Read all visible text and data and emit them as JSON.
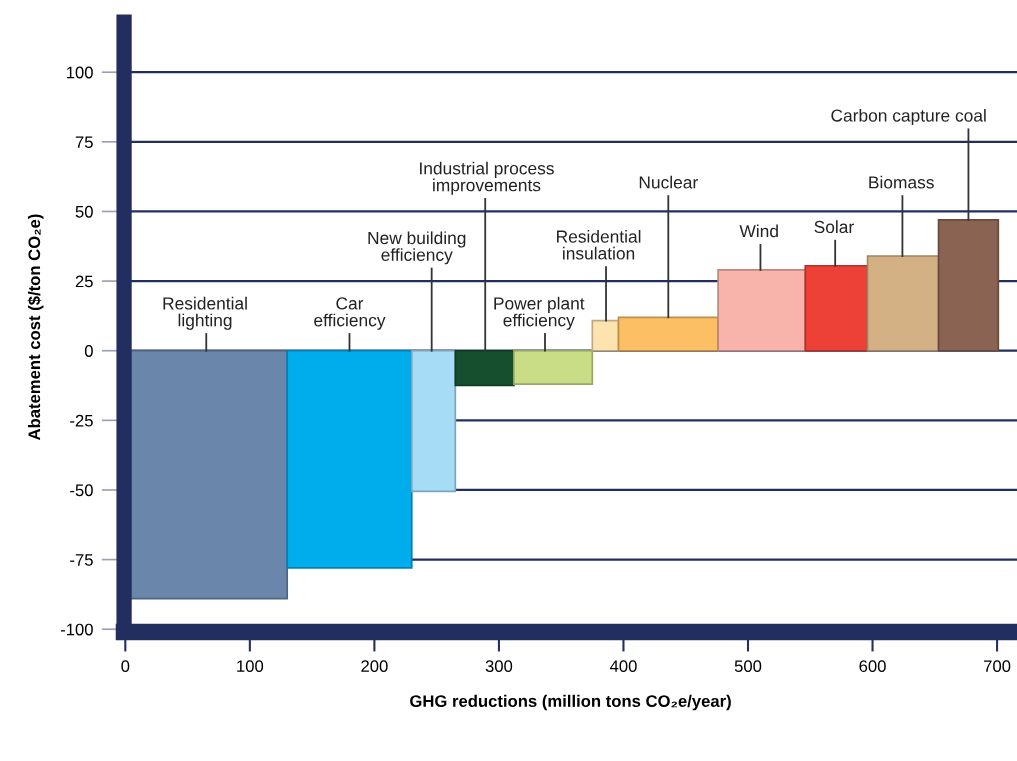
{
  "chart_data": {
    "type": "histogram",
    "bins": [
      0,
      130,
      230,
      265,
      312,
      375,
      396,
      476,
      546,
      596,
      653,
      701
    ],
    "values": [
      -89,
      -78,
      -50.5,
      -12.5,
      -12,
      10.8,
      12,
      29,
      30.5,
      34,
      47
    ],
    "colors": [
      "#6a86ab",
      "#00adec",
      "#a6dcf5",
      "#154f2e",
      "#c8dd85",
      "#fde3ad",
      "#fdbf63",
      "#f8b4aa",
      "#ed4036",
      "#d4b185",
      "#8a6353"
    ],
    "annotations": [
      {
        "text": "Residential\nlighting",
        "x": 65,
        "y": 0
      },
      {
        "text": "Car\nefficiency",
        "x": 180,
        "y": 0
      },
      {
        "text": "New building\nefficiency",
        "x": 246,
        "y": 0
      },
      {
        "text": "Industrial process\nimprovements",
        "x": 289,
        "y": 0
      },
      {
        "text": "Power plant\nefficiency",
        "x": 337,
        "y": 0
      },
      {
        "text": "Residential\ninsulation",
        "x": 386,
        "y": 10.8
      },
      {
        "text": "Nuclear",
        "x": 436,
        "y": 12
      },
      {
        "text": "Wind",
        "x": 510,
        "y": 29
      },
      {
        "text": "Solar",
        "x": 570,
        "y": 30.5
      },
      {
        "text": "Biomass",
        "x": 624,
        "y": 34
      },
      {
        "text": "Carbon capture coal",
        "x": 677,
        "y": 47
      }
    ],
    "xlabel": "GHG reductions (million tons CO₂e/year)",
    "ylabel": "Abatement cost ($/ton CO₂e)",
    "xlim": [
      -1,
      716
    ],
    "ylim": [
      -101,
      118
    ],
    "xticks": [
      0,
      100,
      200,
      300,
      400,
      500,
      600,
      700
    ],
    "yticks": [
      -100,
      -75,
      -50,
      -25,
      0,
      25,
      50,
      75,
      100
    ],
    "grid": "y"
  }
}
